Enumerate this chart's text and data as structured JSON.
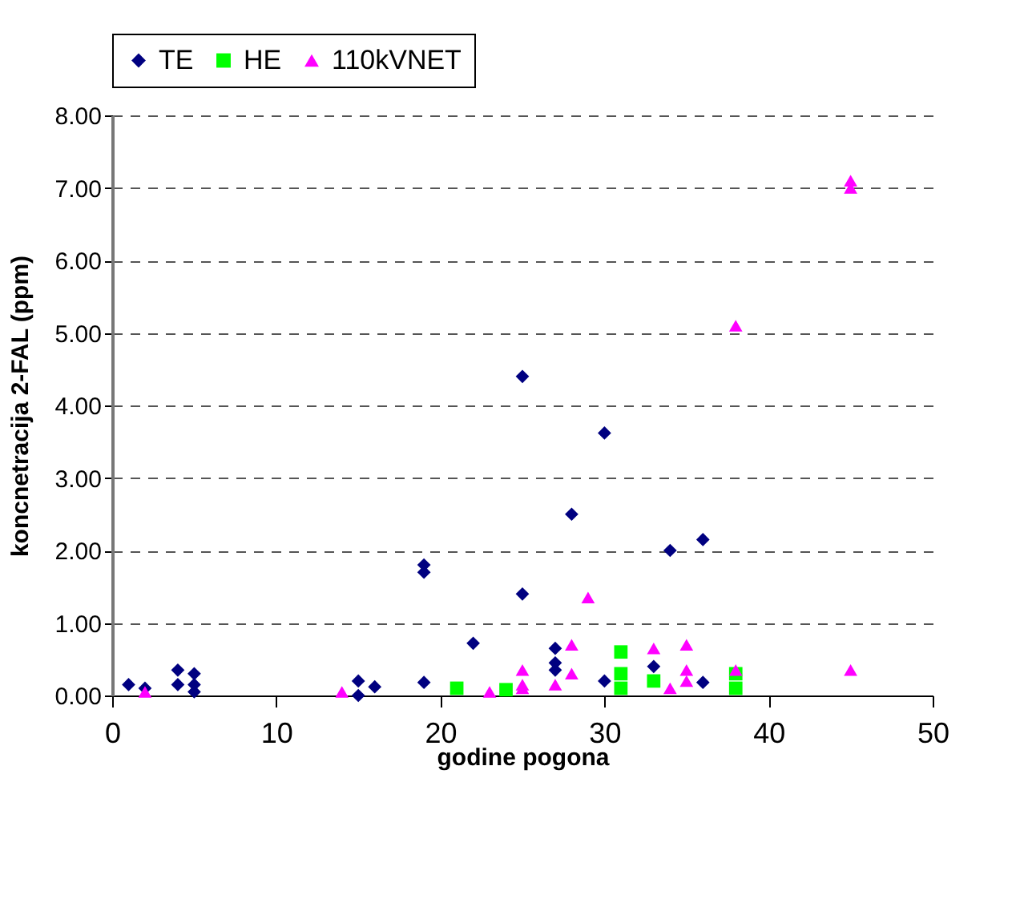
{
  "chart_data": {
    "type": "scatter",
    "xlabel": "godine pogona",
    "ylabel": "koncnetracija 2-FAL (ppm)",
    "xlim": [
      0,
      50
    ],
    "xticks": [
      0,
      10,
      20,
      30,
      40,
      50
    ],
    "ylim": [
      0,
      8
    ],
    "yticks": [
      {
        "value": 0,
        "label": "0.00"
      },
      {
        "value": 1,
        "label": "1.00"
      },
      {
        "value": 2,
        "label": "2.00"
      },
      {
        "value": 3,
        "label": "3.00"
      },
      {
        "value": 4,
        "label": "4.00"
      },
      {
        "value": 5,
        "label": "5.00"
      },
      {
        "value": 6,
        "label": "6.00"
      },
      {
        "value": 7,
        "label": "7.00"
      },
      {
        "value": 8,
        "label": "8.00"
      }
    ],
    "grid": "y",
    "legend": "top",
    "series": [
      {
        "name": "TE",
        "color": "#000080",
        "marker": "diamond",
        "x": [
          1,
          2,
          4,
          4,
          5,
          5,
          5,
          15,
          15,
          16,
          19,
          19,
          19,
          22,
          25,
          25,
          27,
          27,
          27,
          28,
          30,
          30,
          33,
          34,
          36,
          36
        ],
        "values": [
          0.15,
          0.1,
          0.35,
          0.15,
          0.3,
          0.15,
          0.05,
          0.2,
          0,
          0.12,
          1.8,
          1.7,
          0.18,
          0.72,
          4.4,
          1.4,
          0.65,
          0.45,
          0.35,
          2.5,
          3.62,
          0.2,
          0.4,
          2.0,
          2.15,
          0.18
        ]
      },
      {
        "name": "HE",
        "color": "#00ff00",
        "marker": "square",
        "x": [
          21,
          24,
          31,
          31,
          31,
          33,
          38,
          38
        ],
        "values": [
          0.1,
          0.08,
          0.6,
          0.3,
          0.1,
          0.2,
          0.3,
          0.1
        ]
      },
      {
        "name": "110kVNET",
        "color": "#ff00ff",
        "marker": "triangle",
        "x": [
          2,
          14,
          23,
          25,
          25,
          25,
          27,
          28,
          28,
          29,
          33,
          34,
          35,
          35,
          35,
          38,
          38,
          45,
          45,
          45
        ],
        "values": [
          0.05,
          0.05,
          0.05,
          0.35,
          0.15,
          0.1,
          0.15,
          0.7,
          0.3,
          1.35,
          0.65,
          0.1,
          0.7,
          0.35,
          0.2,
          5.1,
          0.35,
          7.1,
          7.0,
          0.35
        ]
      }
    ]
  }
}
